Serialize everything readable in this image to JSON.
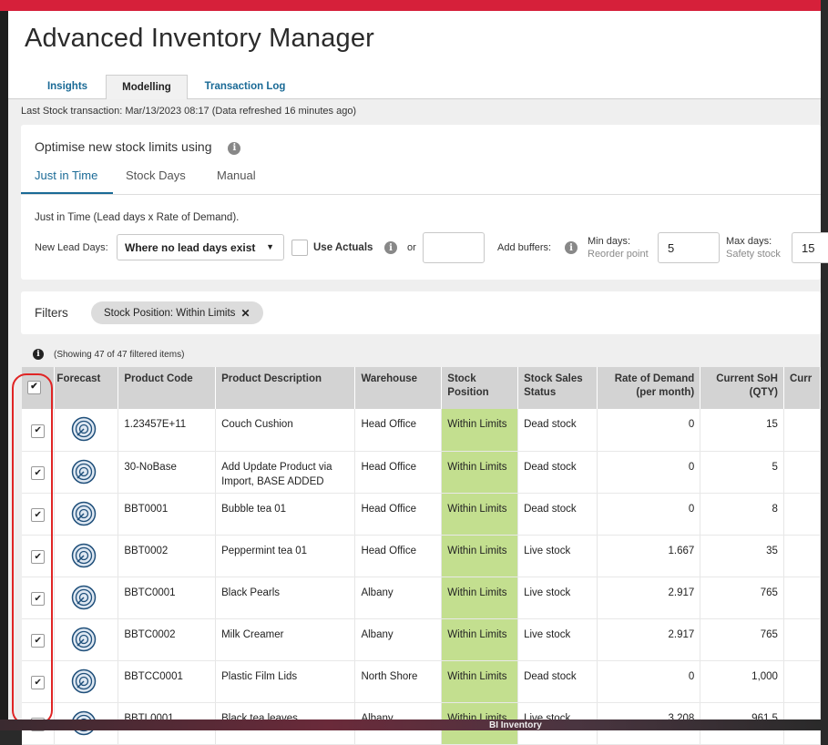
{
  "app": {
    "title": "Advanced Inventory Manager"
  },
  "tabs": [
    {
      "label": "Insights"
    },
    {
      "label": "Modelling"
    },
    {
      "label": "Transaction Log"
    }
  ],
  "last_stock": "Last Stock transaction: Mar/13/2023 08:17 (Data refreshed 16 minutes ago)",
  "optimise": {
    "title": "Optimise new stock limits using",
    "subtabs": [
      "Just in Time",
      "Stock Days",
      "Manual"
    ],
    "description": "Just in Time (Lead days x Rate of Demand).",
    "new_lead_days_label": "New Lead Days:",
    "lead_select_value": "Where no lead days exist",
    "use_actuals_label": "Use Actuals",
    "or_label": "or",
    "add_buffers_label": "Add buffers:",
    "min_days_label": "Min days:",
    "min_days_sub": "Reorder point",
    "min_days_value": "5",
    "max_days_label": "Max days:",
    "max_days_sub": "Safety stock",
    "max_days_value": "15"
  },
  "filters": {
    "label": "Filters",
    "chip": "Stock Position: Within Limits"
  },
  "showing": "(Showing 47 of 47 filtered items)",
  "table": {
    "headers": {
      "forecast": "Forecast",
      "code": "Product Code",
      "desc": "Product Description",
      "warehouse": "Warehouse",
      "position1": "Stock",
      "position2": "Position",
      "sales1": "Stock Sales",
      "sales2": "Status",
      "rate1": "Rate of Demand",
      "rate2": "(per month)",
      "soh1": "Current SoH",
      "soh2": "(QTY)",
      "curr": "Curr"
    },
    "rows": [
      {
        "code": "1.23457E+11",
        "desc": "Couch Cushion",
        "warehouse": "Head Office",
        "position": "Within Limits",
        "status": "Dead stock",
        "rate": "0",
        "soh": "15"
      },
      {
        "code": "30-NoBase",
        "desc": "Add Update Product via Import, BASE ADDED",
        "warehouse": "Head Office",
        "position": "Within Limits",
        "status": "Dead stock",
        "rate": "0",
        "soh": "5"
      },
      {
        "code": "BBT0001",
        "desc": "Bubble tea 01",
        "warehouse": "Head Office",
        "position": "Within Limits",
        "status": "Dead stock",
        "rate": "0",
        "soh": "8"
      },
      {
        "code": "BBT0002",
        "desc": "Peppermint tea 01",
        "warehouse": "Head Office",
        "position": "Within Limits",
        "status": "Live stock",
        "rate": "1.667",
        "soh": "35"
      },
      {
        "code": "BBTC0001",
        "desc": "Black Pearls",
        "warehouse": "Albany",
        "position": "Within Limits",
        "status": "Live stock",
        "rate": "2.917",
        "soh": "765"
      },
      {
        "code": "BBTC0002",
        "desc": "Milk Creamer",
        "warehouse": "Albany",
        "position": "Within Limits",
        "status": "Live stock",
        "rate": "2.917",
        "soh": "765"
      },
      {
        "code": "BBTCC0001",
        "desc": "Plastic Film Lids",
        "warehouse": "North Shore",
        "position": "Within Limits",
        "status": "Dead stock",
        "rate": "0",
        "soh": "1,000"
      },
      {
        "code": "BBTL0001",
        "desc": "Black tea leaves",
        "warehouse": "Albany",
        "position": "Within Limits",
        "status": "Live stock",
        "rate": "3.208",
        "soh": "961.5"
      }
    ]
  },
  "taskbar_label": "BI Inventory",
  "colors": {
    "accent": "#1a6a96",
    "within_limits": "#c3df8f",
    "top_bar": "#d6203a",
    "highlight_ring": "#e02525"
  }
}
